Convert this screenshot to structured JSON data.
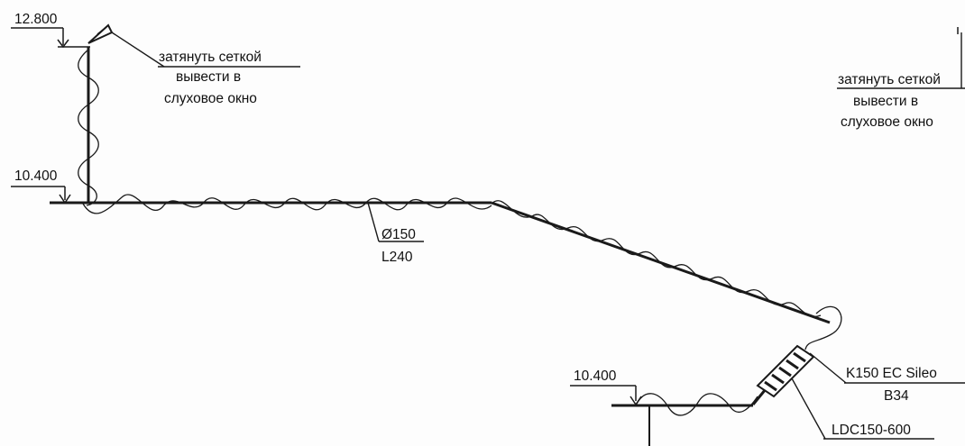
{
  "elevations": {
    "top": "12.800",
    "mid": "10.400",
    "low": "10.400"
  },
  "notes": {
    "left": {
      "line1": "затянуть сеткой",
      "line2": "вывести в",
      "line3": "слуховое окно"
    },
    "right": {
      "line1": "затянуть сеткой",
      "line2": "вывести в",
      "line3": "слуховое окно"
    }
  },
  "duct": {
    "diameter": "Ø150",
    "length": "L240"
  },
  "fan": {
    "model": "K150 EC Sileo",
    "code": "B34"
  },
  "silencer": {
    "model": "LDC150-600"
  },
  "colors": {
    "ink": "#1a1a1a",
    "paper": "#fdfdfd"
  }
}
